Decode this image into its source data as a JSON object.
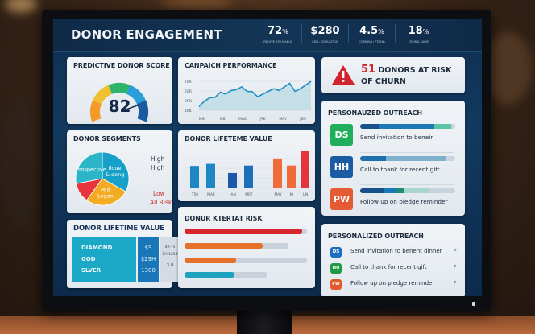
{
  "header": {
    "title": "DONOR ENGAGEMENT",
    "kpis": [
      {
        "value": "72",
        "unit": "%",
        "label": "REGIVE TOI MABLE"
      },
      {
        "value": "$280",
        "unit": "",
        "label": "CELL-EDUCATION"
      },
      {
        "value": "4.5",
        "unit": "%",
        "label": "COMPAVI (PTION)"
      },
      {
        "value": "18",
        "unit": "%",
        "label": "CRUNG-HARE"
      }
    ]
  },
  "score_card": {
    "title": "PREDICTIVE DONOR SCORE",
    "value": "82",
    "colors": [
      "#f39a2b",
      "#f0c030",
      "#2eb36a",
      "#2a9ed8",
      "#1a5aa0"
    ]
  },
  "campaign_card": {
    "title": "CANPAICH PERFORMANCE",
    "y_ticks": [
      "T0R",
      "20R",
      "2RK",
      "16K"
    ],
    "x_ticks": [
      "MIN",
      "MB",
      "MAK",
      "JTK",
      "MAY",
      "JSN"
    ],
    "series": [
      14,
      17,
      19,
      19.2,
      22,
      21,
      23,
      23.5,
      25,
      22.5,
      22.3,
      19.5,
      21,
      22.5,
      24,
      23,
      25,
      27,
      22.5,
      24,
      26,
      28
    ],
    "line_color": "#1f8fc2",
    "fill_color": "#a9d6e2"
  },
  "alert_card": {
    "count": "51",
    "text_line1": "DONORS AT RISK",
    "text_line2": "OF CHURN",
    "icon": "warning-triangle-icon",
    "color": "#d0252e"
  },
  "outreach_card_1": {
    "title": "PERSONAUZED OUTREACH",
    "items": [
      {
        "initials": "DS",
        "text": "Send  invitation to beneir",
        "color": "#1fae5c",
        "bar": [
          {
            "frac": 0.2,
            "color": "#17508a"
          },
          {
            "frac": 0.58,
            "color": "#1d78b8"
          },
          {
            "frac": 0.18,
            "color": "#5cc4a4"
          }
        ]
      },
      {
        "initials": "HH",
        "text": "Call to thank for recent gift",
        "color": "#1a5ca3",
        "bar": [
          {
            "frac": 0.27,
            "color": "#1e6fae"
          },
          {
            "frac": 0.64,
            "color": "#7fb0cc"
          }
        ]
      },
      {
        "initials": "PW",
        "text": "Follow up on pledge reminder",
        "color": "#e35a33",
        "bar": [
          {
            "frac": 0.25,
            "color": "#17508a"
          },
          {
            "frac": 0.13,
            "color": "#1d78b8"
          },
          {
            "frac": 0.08,
            "color": "#1e8a7a"
          },
          {
            "frac": 0.27,
            "color": "#a8d6cf"
          }
        ]
      }
    ]
  },
  "segments_card": {
    "title": "DONOR SEGMENTS",
    "slices": [
      {
        "label": "Iloue & dong",
        "value": 33,
        "color": "#17a0c8"
      },
      {
        "label": "Mid Logan",
        "value": 27,
        "color": "#f2ab22"
      },
      {
        "label": "",
        "value": 12,
        "color": "#e8353d"
      },
      {
        "label": "Prospective",
        "value": 28,
        "color": "#2bb5c8"
      }
    ],
    "side_labels": [
      {
        "text": "High",
        "risk": false
      },
      {
        "text": "High",
        "risk": false
      },
      {
        "text": "Low",
        "risk": true
      },
      {
        "text": "All Risk",
        "risk": true
      }
    ]
  },
  "ltv_bar_card": {
    "title": "DONOR LIFETEME VALUE",
    "categories": [
      "T50",
      "MAE",
      "JAN",
      "MRF",
      "MAY",
      "NI",
      "UN"
    ],
    "values": [
      52,
      57,
      35,
      53,
      70,
      53,
      88
    ],
    "colors": [
      "#1d86c4",
      "#1d86c4",
      "#1a5aa8",
      "#1d6fb8",
      "#f06a3a",
      "#f06a3a",
      "#e5353a"
    ]
  },
  "ltv_table_card": {
    "title": "DONOR LIFETIME VALUE",
    "tiers": [
      "DIAMOND",
      "GOD",
      "SLVER"
    ],
    "values": [
      "$S",
      "$29H",
      "1300"
    ],
    "notes": [
      "4R-7s",
      "1H-1264",
      "3 8"
    ]
  },
  "risk_card": {
    "title": "DONUR KTERTAT RISK",
    "bars": [
      {
        "fill": 0.96,
        "track": 1.0,
        "color": "#d8262f"
      },
      {
        "fill": 0.64,
        "track": 0.85,
        "color": "#e4702a"
      },
      {
        "fill": 0.42,
        "track": 1.0,
        "color": "#e4702a"
      },
      {
        "fill": 0.41,
        "track": 0.68,
        "color": "#1fa3c0"
      }
    ]
  },
  "outreach_card_2": {
    "title": "PERSONALIZED OUTREACH",
    "items": [
      {
        "initials": "DS",
        "text": "Send invitation to benent dinner",
        "color": "#1a6fc0"
      },
      {
        "initials": "HU",
        "text": "Call to thank for recent gift",
        "color": "#1f9a45"
      },
      {
        "initials": "FW",
        "text": "Follow up on pledge reminder",
        "color": "#e05a2b"
      }
    ]
  }
}
